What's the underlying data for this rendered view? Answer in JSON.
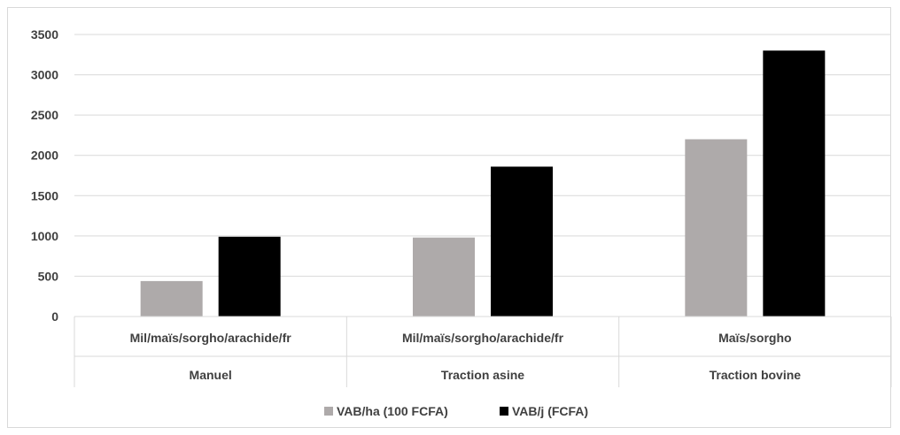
{
  "chart_data": {
    "type": "bar",
    "title": "",
    "xlabel": "",
    "ylabel": "",
    "ylim": [
      0,
      3500
    ],
    "yticks": [
      0,
      500,
      1000,
      1500,
      2000,
      2500,
      3000,
      3500
    ],
    "grid": true,
    "legend_position": "bottom",
    "categories": [
      {
        "label": "Mil/maïs/sorgho/arachide/fr",
        "group": "Manuel"
      },
      {
        "label": "Mil/maïs/sorgho/arachide/fr",
        "group": "Traction asine"
      },
      {
        "label": "Maïs/sorgho",
        "group": "Traction bovine"
      }
    ],
    "series": [
      {
        "name": "VAB/ha (100 FCFA)",
        "color": "#aeaaaa",
        "values": [
          440,
          980,
          2200
        ]
      },
      {
        "name": "VAB/j (FCFA)",
        "color": "#000000",
        "values": [
          990,
          1860,
          3300
        ]
      }
    ]
  }
}
